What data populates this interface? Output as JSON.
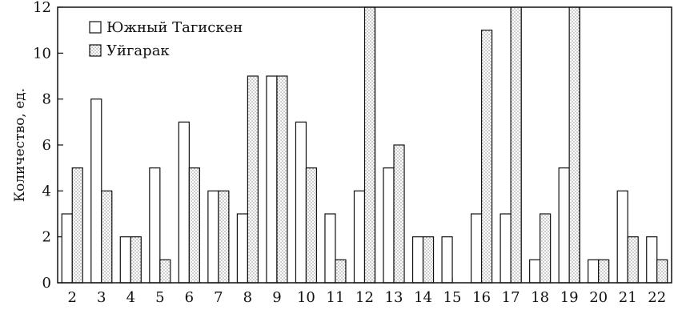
{
  "chart_data": {
    "type": "bar",
    "ylabel": "Количество, ед.",
    "xlabel": "",
    "ylim": [
      0,
      12
    ],
    "yticks": [
      0,
      2,
      4,
      6,
      8,
      10,
      12
    ],
    "categories": [
      "2",
      "3",
      "4",
      "5",
      "6",
      "7",
      "8",
      "9",
      "10",
      "11",
      "12",
      "13",
      "14",
      "15",
      "16",
      "17",
      "18",
      "19",
      "20",
      "21",
      "22"
    ],
    "series": [
      {
        "name": "Южный Тагискен",
        "pattern": "hollow",
        "values": [
          3,
          8,
          2,
          5,
          7,
          4,
          3,
          9,
          7,
          3,
          4,
          5,
          2,
          2,
          3,
          3,
          1,
          5,
          1,
          4,
          2
        ]
      },
      {
        "name": "Уйгарак",
        "pattern": "dotted",
        "values": [
          5,
          4,
          2,
          1,
          5,
          4,
          9,
          9,
          5,
          1,
          12,
          6,
          2,
          0,
          11,
          12,
          3,
          12,
          1,
          2,
          1
        ]
      }
    ],
    "legend_position": "top-left",
    "grid": false,
    "colors": {
      "stroke": "#111111",
      "fill": "#ffffff",
      "dot": "#555555"
    }
  }
}
